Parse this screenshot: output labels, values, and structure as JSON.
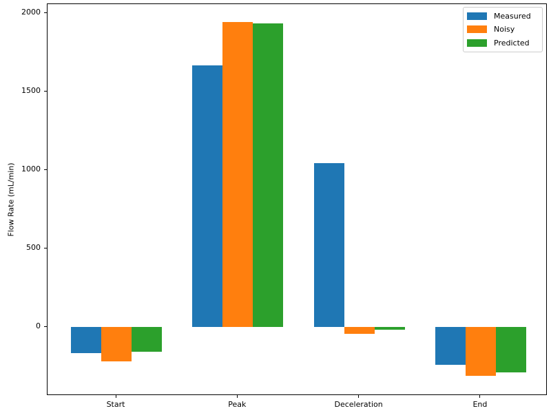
{
  "chart_data": {
    "type": "bar",
    "categories": [
      "Start",
      "Peak",
      "Deceleration",
      "End"
    ],
    "series": [
      {
        "name": "Measured",
        "color": "#1f77b4",
        "values": [
          -165,
          1665,
          1045,
          -240
        ]
      },
      {
        "name": "Noisy",
        "color": "#ff7f0e",
        "values": [
          -220,
          1945,
          -45,
          -310
        ]
      },
      {
        "name": "Predicted",
        "color": "#2ca02c",
        "values": [
          -160,
          1935,
          -20,
          -290
        ]
      }
    ],
    "title": "",
    "xlabel": "",
    "ylabel": "Flow Rate (mL/min)",
    "yticks": [
      0,
      500,
      1000,
      1500,
      2000
    ],
    "ylim": [
      -439,
      2057
    ],
    "grid": false,
    "legend_position": "upper right",
    "background_color": "#ffffff",
    "spine_color": "#000000"
  }
}
